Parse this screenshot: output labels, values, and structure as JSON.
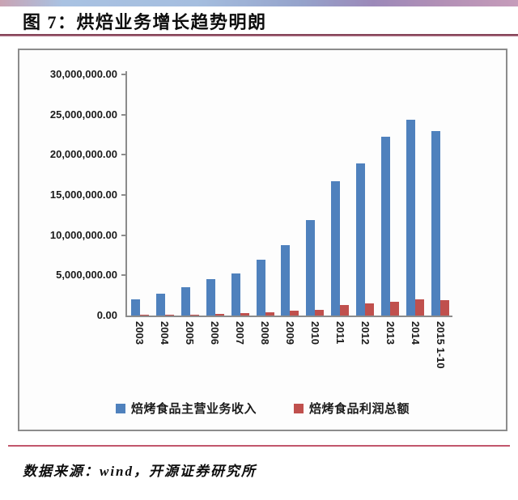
{
  "page": {
    "title": "图 7：烘焙业务增长趋势明朗",
    "source_note": "数据来源：wind，开源证券研究所"
  },
  "chart_data": {
    "type": "bar",
    "title": "烘焙业务增长趋势明朗",
    "categories": [
      "2003",
      "2004",
      "2005",
      "2006",
      "2007",
      "2008",
      "2009",
      "2010",
      "2011",
      "2012",
      "2013",
      "2014",
      "2015 1-10"
    ],
    "series": [
      {
        "name": "焙烤食品主营业务收入",
        "color": "#4F81BD",
        "values": [
          2050000,
          2750000,
          3500000,
          4500000,
          5200000,
          6900000,
          8800000,
          11900000,
          16700000,
          18900000,
          22200000,
          24400000,
          23000000
        ]
      },
      {
        "name": "焙烤食品利润总额",
        "color": "#C0504D",
        "values": [
          60000,
          100000,
          120000,
          220000,
          300000,
          420000,
          600000,
          750000,
          1300000,
          1500000,
          1750000,
          2000000,
          1900000
        ]
      }
    ],
    "ylim": [
      0,
      30000000
    ],
    "ytick_interval": 5000000,
    "ytick_labels": [
      "0.00",
      "5,000,000.00",
      "10,000,000.00",
      "15,000,000.00",
      "20,000,000.00",
      "25,000,000.00",
      "30,000,000.00"
    ],
    "grid": false,
    "legend_position": "bottom",
    "xlabel_rotation_deg": 90
  },
  "colors": {
    "axis": "#8c8c8c",
    "title_rule": "#8e4a5e",
    "footer_rule": "#c2566c"
  }
}
